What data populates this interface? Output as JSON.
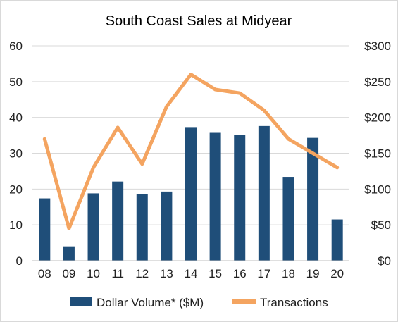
{
  "chart_data": {
    "type": "bar",
    "title": "South Coast Sales at Midyear",
    "categories": [
      "08",
      "09",
      "10",
      "11",
      "12",
      "13",
      "14",
      "15",
      "16",
      "17",
      "18",
      "19",
      "20"
    ],
    "y_left": {
      "ylim": [
        0,
        60
      ],
      "ticks": [
        "0",
        "10",
        "20",
        "30",
        "40",
        "50",
        "60"
      ]
    },
    "y_right": {
      "ylim": [
        0,
        300
      ],
      "ticks": [
        "$0",
        "$50",
        "$100",
        "$150",
        "$200",
        "$250",
        "$300"
      ]
    },
    "grid": true,
    "legend_position": "bottom",
    "series": [
      {
        "name": "Dollar Volume* ($M)",
        "type": "bar",
        "axis": "left",
        "color": "#1f4e79",
        "values": [
          17.4,
          4.0,
          18.8,
          22.1,
          18.6,
          19.3,
          37.3,
          35.7,
          35.1,
          37.6,
          23.4,
          34.3,
          11.5
        ]
      },
      {
        "name": "Transactions",
        "type": "line",
        "axis": "right",
        "color": "#f4a460",
        "values": [
          170,
          45,
          130,
          186,
          135,
          215,
          260,
          239,
          234,
          210,
          170,
          150,
          130
        ]
      }
    ]
  }
}
